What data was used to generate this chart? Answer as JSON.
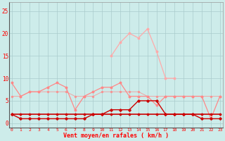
{
  "x": [
    0,
    1,
    2,
    3,
    4,
    5,
    6,
    7,
    8,
    9,
    10,
    11,
    12,
    13,
    14,
    15,
    16,
    17,
    18,
    19,
    20,
    21,
    22,
    23
  ],
  "wind_avg": [
    2,
    2,
    2,
    2,
    2,
    2,
    2,
    2,
    2,
    2,
    2,
    2,
    2,
    2,
    2,
    2,
    2,
    2,
    2,
    2,
    2,
    2,
    2,
    2
  ],
  "wind_gust_low": [
    6,
    6,
    7,
    7,
    7,
    7,
    7,
    6,
    6,
    6,
    7,
    7,
    7,
    7,
    7,
    6,
    6,
    6,
    6,
    6,
    6,
    6,
    6,
    6
  ],
  "wind_gust": [
    9,
    6,
    7,
    7,
    8,
    9,
    8,
    3,
    6,
    7,
    8,
    8,
    9,
    6,
    6,
    6,
    4,
    6,
    6,
    6,
    6,
    6,
    1,
    6
  ],
  "wind_min": [
    2,
    1,
    1,
    1,
    1,
    1,
    1,
    1,
    1,
    2,
    2,
    3,
    3,
    3,
    5,
    5,
    5,
    2,
    2,
    2,
    2,
    1,
    1,
    1
  ],
  "wind_max_gust": [
    null,
    null,
    null,
    null,
    null,
    null,
    null,
    null,
    null,
    null,
    null,
    15,
    18,
    20,
    19,
    21,
    16,
    10,
    10,
    null,
    null,
    null,
    null,
    null
  ],
  "xlabel": "Vent moyen/en rafales ( km/h )",
  "yticks": [
    0,
    5,
    10,
    15,
    20,
    25
  ],
  "xticks": [
    0,
    1,
    2,
    3,
    4,
    5,
    6,
    7,
    8,
    9,
    10,
    11,
    12,
    13,
    14,
    15,
    16,
    17,
    18,
    19,
    20,
    21,
    22,
    23
  ],
  "bg_color": "#cdecea",
  "grid_color": "#aacccc",
  "color_dark_red": "#cc0000",
  "color_light_pink": "#ffaaaa",
  "color_medium_pink": "#ff8888"
}
